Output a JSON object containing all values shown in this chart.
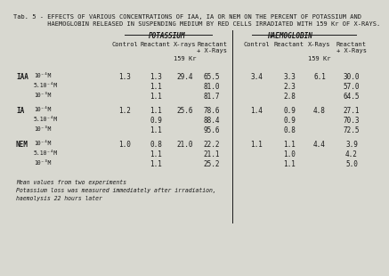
{
  "title_line1": "Tab. 5 - EFFECTS OF VARIOUS CONCENTRATIONS OF IAA, IA OR NEM ON THE PERCENT OF POTASSIUM AND",
  "title_line2": "         HAEMOGLOBIN RELEASED IN SUSPENDING MEDIUM BY RED CELLS IRRADIATED WITH 159 Kr OF X-RAYS.",
  "section_potassium": "POTASSIUM",
  "section_haemoglobin": "HAEMOGLOBIN",
  "col_headers": [
    "Control",
    "Reactant",
    "X-rays",
    "Reactant\n+ X-Rays"
  ],
  "col_headers_hae": [
    "Control",
    "Reactant",
    "X-Rays",
    "Reactant\n+ X-Rays"
  ],
  "subheader": "159 Kr",
  "row_groups": [
    {
      "label": "IAA",
      "rows": [
        {
          "conc": "10⁻⁴M",
          "pot_control": "1.3",
          "pot_reactant": "1.3",
          "pot_xrays": "29.4",
          "pot_rx": "65.5",
          "hae_control": "3.4",
          "hae_reactant": "3.3",
          "hae_xrays": "6.1",
          "hae_rx": "30.0"
        },
        {
          "conc": "5.10⁻⁴M",
          "pot_control": "",
          "pot_reactant": "1.1",
          "pot_xrays": "",
          "pot_rx": "81.0",
          "hae_control": "",
          "hae_reactant": "2.3",
          "hae_xrays": "",
          "hae_rx": "57.0"
        },
        {
          "conc": "10⁻³M",
          "pot_control": "",
          "pot_reactant": "1.1",
          "pot_xrays": "",
          "pot_rx": "81.7",
          "hae_control": "",
          "hae_reactant": "2.8",
          "hae_xrays": "",
          "hae_rx": "64.5"
        }
      ]
    },
    {
      "label": "IA",
      "rows": [
        {
          "conc": "10⁻⁴M",
          "pot_control": "1.2",
          "pot_reactant": "1.1",
          "pot_xrays": "25.6",
          "pot_rx": "78.6",
          "hae_control": "1.4",
          "hae_reactant": "0.9",
          "hae_xrays": "4.8",
          "hae_rx": "27.1"
        },
        {
          "conc": "5.10⁻⁴M",
          "pot_control": "",
          "pot_reactant": "0.9",
          "pot_xrays": "",
          "pot_rx": "88.4",
          "hae_control": "",
          "hae_reactant": "0.9",
          "hae_xrays": "",
          "hae_rx": "70.3"
        },
        {
          "conc": "10⁻³M",
          "pot_control": "",
          "pot_reactant": "1.1",
          "pot_xrays": "",
          "pot_rx": "95.6",
          "hae_control": "",
          "hae_reactant": "0.8",
          "hae_xrays": "",
          "hae_rx": "72.5"
        }
      ]
    },
    {
      "label": "NEM",
      "rows": [
        {
          "conc": "10⁻⁴M",
          "pot_control": "1.0",
          "pot_reactant": "0.8",
          "pot_xrays": "21.0",
          "pot_rx": "22.2",
          "hae_control": "1.1",
          "hae_reactant": "1.1",
          "hae_xrays": "4.4",
          "hae_rx": "3.9"
        },
        {
          "conc": "5.10⁻⁴M",
          "pot_control": "",
          "pot_reactant": "1.1",
          "pot_xrays": "",
          "pot_rx": "21.1",
          "hae_control": "",
          "hae_reactant": "1.0",
          "hae_xrays": "",
          "hae_rx": "4.2"
        },
        {
          "conc": "10⁻³M",
          "pot_control": "",
          "pot_reactant": "1.1",
          "pot_xrays": "",
          "pot_rx": "25.2",
          "hae_control": "",
          "hae_reactant": "1.1",
          "hae_xrays": "",
          "hae_rx": "5.0"
        }
      ]
    }
  ],
  "footnotes": [
    "Mean values from two experiments",
    "Potassium loss was measured immediately after irradiation,",
    "haemolysis 22 hours later"
  ],
  "bg_color": "#d8d8d0",
  "text_color": "#1a1a1a",
  "font_size": 5.5,
  "title_font_size": 5.0,
  "header_font_size": 5.5
}
